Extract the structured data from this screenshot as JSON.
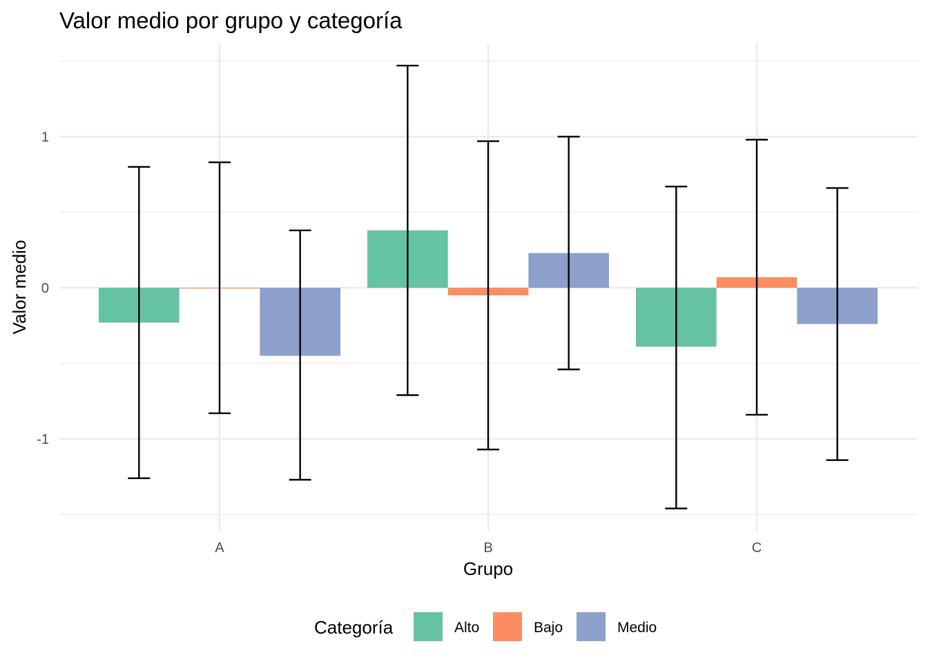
{
  "chart_data": {
    "type": "bar",
    "title": "Valor medio por grupo y categoría",
    "xlabel": "Grupo",
    "ylabel": "Valor medio",
    "categories": [
      "A",
      "B",
      "C"
    ],
    "ylim": [
      -1.55,
      1.55
    ],
    "yticks": [
      -1,
      0,
      1
    ],
    "yticklabels": [
      "-1",
      "0",
      "1"
    ],
    "grid": true,
    "legend": {
      "title": "Categoría",
      "position": "bottom"
    },
    "series": [
      {
        "name": "Alto",
        "color": "#66c2a5",
        "values": [
          -0.23,
          0.38,
          -0.39
        ],
        "error_low": [
          -1.26,
          -0.71,
          -1.46
        ],
        "error_high": [
          0.8,
          1.47,
          0.67
        ]
      },
      {
        "name": "Bajo",
        "color": "#fc8d62",
        "values": [
          0.0,
          -0.05,
          0.07
        ],
        "error_low": [
          -0.83,
          -1.07,
          -0.84
        ],
        "error_high": [
          0.83,
          0.97,
          0.98
        ]
      },
      {
        "name": "Medio",
        "color": "#8da0cb",
        "values": [
          -0.45,
          0.23,
          -0.24
        ],
        "error_low": [
          -1.27,
          -0.54,
          -1.14
        ],
        "error_high": [
          0.38,
          1.0,
          0.66
        ]
      }
    ]
  }
}
